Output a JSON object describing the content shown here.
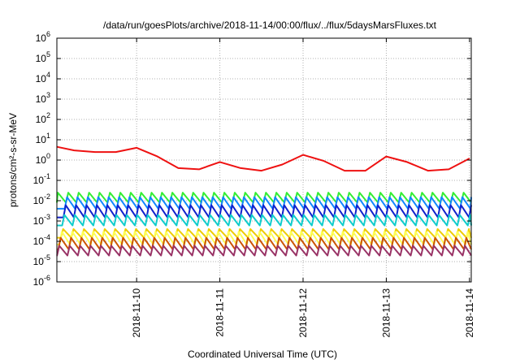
{
  "chart_data": {
    "type": "line",
    "title": "/data/run/goesPlots/archive/2018-11-14/00:00/flux/../flux/5daysMarsFluxes.txt",
    "xlabel": "Coordinated Universal Time (UTC)",
    "ylabel": "protons/cm²-s-sr-MeV",
    "yscale": "log",
    "ylim": [
      1e-06,
      1000000.0
    ],
    "y_ticks": [
      {
        "base": "10",
        "exp": "-6",
        "value": 1e-06
      },
      {
        "base": "10",
        "exp": "-5",
        "value": 1e-05
      },
      {
        "base": "10",
        "exp": "-4",
        "value": 0.0001
      },
      {
        "base": "10",
        "exp": "-3",
        "value": 0.001
      },
      {
        "base": "10",
        "exp": "-2",
        "value": 0.01
      },
      {
        "base": "10",
        "exp": "-1",
        "value": 0.1
      },
      {
        "base": "10",
        "exp": "0",
        "value": 1
      },
      {
        "base": "10",
        "exp": "1",
        "value": 10
      },
      {
        "base": "10",
        "exp": "2",
        "value": 100
      },
      {
        "base": "10",
        "exp": "3",
        "value": 1000
      },
      {
        "base": "10",
        "exp": "4",
        "value": 10000
      },
      {
        "base": "10",
        "exp": "5",
        "value": 100000
      },
      {
        "base": "10",
        "exp": "6",
        "value": 1000000
      }
    ],
    "xlim": [
      "2018-11-09T01:00",
      "2018-11-14T00:30"
    ],
    "x_ticks": [
      "2018-11-10",
      "2018-11-11",
      "2018-11-12",
      "2018-11-13",
      "2018-11-14"
    ],
    "grid": true,
    "series": [
      {
        "color": "#ee1111",
        "x": [
          "2018-11-09T01:00",
          "2018-11-09T06:00",
          "2018-11-09T12:00",
          "2018-11-09T18:00",
          "2018-11-10T00:00",
          "2018-11-10T06:00",
          "2018-11-10T12:00",
          "2018-11-10T18:00",
          "2018-11-11T00:00",
          "2018-11-11T06:00",
          "2018-11-11T12:00",
          "2018-11-11T18:00",
          "2018-11-12T00:00",
          "2018-11-12T06:00",
          "2018-11-12T12:00",
          "2018-11-12T18:00",
          "2018-11-13T00:00",
          "2018-11-13T06:00",
          "2018-11-13T12:00",
          "2018-11-13T18:00",
          "2018-11-14T00:00"
        ],
        "y": [
          4.5,
          3,
          2.5,
          2.5,
          4,
          1.5,
          0.4,
          0.35,
          0.8,
          0.4,
          0.3,
          0.6,
          1.8,
          0.9,
          0.3,
          0.3,
          1.5,
          0.8,
          0.3,
          0.35,
          1.2
        ]
      },
      {
        "color": "#33ee33",
        "base": 0.008,
        "peak": 0.025
      },
      {
        "color": "#1188ff",
        "base": 0.004,
        "peak": 0.015
      },
      {
        "color": "#1122cc",
        "base": 0.0015,
        "peak": 0.006
      },
      {
        "color": "#11cccc",
        "base": 0.0006,
        "peak": 0.002
      },
      {
        "color": "#eecc00",
        "base": 0.00015,
        "peak": 0.0004
      },
      {
        "color": "#ffff55",
        "base": 7e-05,
        "peak": 0.0003
      },
      {
        "color": "#cc5500",
        "base": 4e-05,
        "peak": 0.00015
      },
      {
        "color": "#993366",
        "base": 2e-05,
        "peak": 6e-05
      }
    ]
  }
}
